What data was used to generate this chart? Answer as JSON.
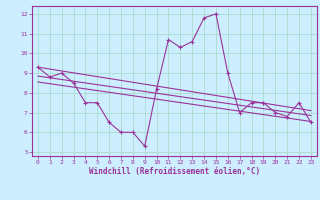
{
  "x": [
    0,
    1,
    2,
    3,
    4,
    5,
    6,
    7,
    8,
    9,
    10,
    11,
    12,
    13,
    14,
    15,
    16,
    17,
    18,
    19,
    20,
    21,
    22,
    23
  ],
  "y_main": [
    9.3,
    8.8,
    9.0,
    8.5,
    7.5,
    7.5,
    6.5,
    6.0,
    6.0,
    5.3,
    8.2,
    10.7,
    10.3,
    10.6,
    11.8,
    12.0,
    9.0,
    7.0,
    7.5,
    7.5,
    7.0,
    6.8,
    7.5,
    6.5
  ],
  "trend_lines": [
    {
      "x0": 0,
      "y0": 9.3,
      "x1": 23,
      "y1": 7.1
    },
    {
      "x0": 0,
      "y0": 8.85,
      "x1": 23,
      "y1": 6.85
    },
    {
      "x0": 0,
      "y0": 8.55,
      "x1": 23,
      "y1": 6.55
    }
  ],
  "line_color": "#993399",
  "bg_color": "#cceeff",
  "grid_color": "#aadddd",
  "xlabel": "Windchill (Refroidissement éolien,°C)",
  "ylim": [
    4.8,
    12.4
  ],
  "xlim": [
    -0.5,
    23.5
  ],
  "yticks": [
    5,
    6,
    7,
    8,
    9,
    10,
    11,
    12
  ],
  "xticks": [
    0,
    1,
    2,
    3,
    4,
    5,
    6,
    7,
    8,
    9,
    10,
    11,
    12,
    13,
    14,
    15,
    16,
    17,
    18,
    19,
    20,
    21,
    22,
    23
  ]
}
